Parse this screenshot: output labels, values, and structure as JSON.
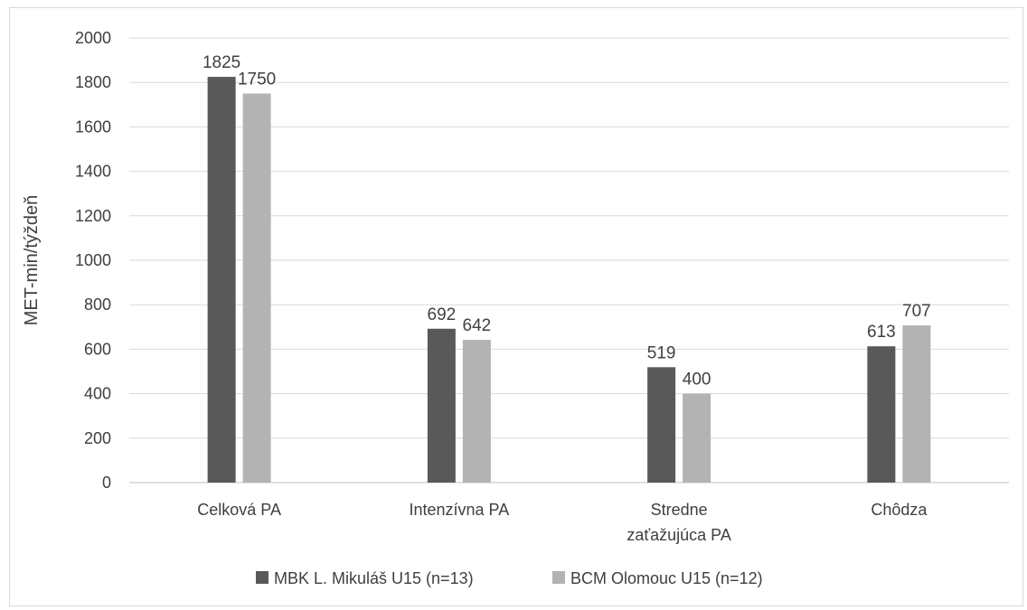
{
  "chart_data": {
    "type": "bar",
    "title": "",
    "xlabel": "",
    "ylabel": "MET-min/týždeň",
    "ylim": [
      0,
      2000
    ],
    "yticks": [
      0,
      200,
      400,
      600,
      800,
      1000,
      1200,
      1400,
      1600,
      1800,
      2000
    ],
    "grid": true,
    "legend_position": "bottom",
    "categories": [
      [
        "Celková PA"
      ],
      [
        "Intenzívna PA"
      ],
      [
        "Stredne",
        "zaťažujúca PA"
      ],
      [
        "Chôdza"
      ]
    ],
    "series": [
      {
        "name": "MBK L. Mikuláš U15 (n=13)",
        "color": "#595959",
        "values": [
          1825,
          692,
          519,
          613
        ]
      },
      {
        "name": "BCM Olomouc U15 (n=12)",
        "color": "#b3b3b3",
        "values": [
          1750,
          642,
          400,
          707
        ]
      }
    ]
  }
}
